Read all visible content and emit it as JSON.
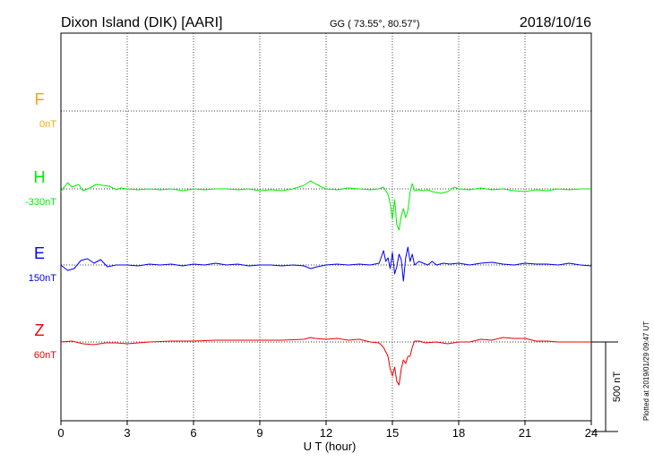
{
  "header": {
    "station": "Dixon Island (DIK)  [AARI]",
    "coords": "GG ( 73.55°,  80.57°)",
    "date": "2018/10/16"
  },
  "chart_data": {
    "type": "line",
    "title": "Dixon Island (DIK)  [AARI]",
    "xlabel": "U T (hour)",
    "xlim": [
      0,
      24
    ],
    "x_ticks": [
      "0",
      "3",
      "6",
      "9",
      "12",
      "15",
      "18",
      "21",
      "24"
    ],
    "grid": true,
    "scale_bar": {
      "value": 500,
      "label": "500 nT"
    },
    "footer": "Plotted at 2019/01/29 09:47 UT",
    "series": [
      {
        "name": "F",
        "offset_label": "0nT",
        "color": "#ffa500",
        "x": [],
        "y": []
      },
      {
        "name": "H",
        "offset_label": "-330nT",
        "color": "#00ee00",
        "x": [
          0,
          0.3,
          0.5,
          0.8,
          1.0,
          1.3,
          1.6,
          1.9,
          2.2,
          2.5,
          2.7,
          3.0,
          3.5,
          4.0,
          4.5,
          5.0,
          5.5,
          6.0,
          6.5,
          7.0,
          7.5,
          8.0,
          8.5,
          9.0,
          9.5,
          10.0,
          10.5,
          11.0,
          11.3,
          11.5,
          11.8,
          12.0,
          12.5,
          13.0,
          13.5,
          14.0,
          14.4,
          14.6,
          14.8,
          14.9,
          15.0,
          15.1,
          15.2,
          15.3,
          15.4,
          15.5,
          15.6,
          15.7,
          15.8,
          15.9,
          16.0,
          16.2,
          16.4,
          16.6,
          16.8,
          17.0,
          17.2,
          17.5,
          17.8,
          18.0,
          18.5,
          19.0,
          19.5,
          20.0,
          20.5,
          21.0,
          21.5,
          22.0,
          22.5,
          23.0,
          23.5,
          24.0
        ],
        "y": [
          -15,
          35,
          10,
          25,
          -10,
          5,
          25,
          20,
          15,
          -5,
          5,
          0,
          -5,
          0,
          -5,
          0,
          -10,
          0,
          -5,
          0,
          0,
          -5,
          0,
          -10,
          -5,
          -10,
          0,
          20,
          45,
          30,
          10,
          0,
          -5,
          5,
          0,
          -5,
          0,
          10,
          -30,
          -80,
          -170,
          -60,
          -200,
          -230,
          -150,
          -110,
          -160,
          -120,
          -20,
          30,
          -10,
          -5,
          -10,
          -5,
          -15,
          -20,
          -25,
          -15,
          10,
          0,
          -5,
          5,
          -5,
          0,
          -10,
          -15,
          -5,
          -10,
          0,
          -5,
          0,
          0
        ]
      },
      {
        "name": "E",
        "offset_label": "150nT",
        "color": "#0000ee",
        "x": [
          0,
          0.3,
          0.6,
          0.9,
          1.2,
          1.5,
          1.8,
          2.1,
          2.5,
          3.0,
          3.5,
          4.0,
          4.5,
          5.0,
          5.5,
          6.0,
          6.5,
          7.0,
          7.5,
          8.0,
          8.5,
          9.0,
          9.5,
          10.0,
          10.5,
          11.0,
          11.3,
          11.6,
          12.0,
          12.5,
          13.0,
          13.5,
          14.0,
          14.4,
          14.6,
          14.7,
          14.8,
          14.9,
          15.0,
          15.1,
          15.2,
          15.3,
          15.4,
          15.5,
          15.6,
          15.7,
          15.8,
          15.9,
          16.0,
          16.2,
          16.4,
          16.6,
          16.8,
          17.0,
          17.3,
          17.6,
          18.0,
          18.5,
          19.0,
          19.5,
          20.0,
          20.5,
          21.0,
          21.5,
          22.0,
          22.5,
          23.0,
          23.5,
          24.0
        ],
        "y": [
          0,
          -30,
          -20,
          25,
          35,
          10,
          30,
          -10,
          0,
          0,
          -5,
          5,
          0,
          5,
          -5,
          5,
          0,
          10,
          0,
          5,
          -5,
          0,
          0,
          -5,
          0,
          -5,
          -20,
          -10,
          0,
          5,
          0,
          5,
          0,
          10,
          80,
          20,
          40,
          -20,
          70,
          -50,
          -10,
          60,
          30,
          -90,
          40,
          100,
          20,
          60,
          0,
          20,
          10,
          0,
          20,
          0,
          10,
          5,
          10,
          0,
          10,
          15,
          5,
          0,
          10,
          5,
          5,
          0,
          10,
          0,
          -5
        ]
      },
      {
        "name": "Z",
        "offset_label": "60nT",
        "color": "#ee0000",
        "x": [
          0,
          0.5,
          1.0,
          1.5,
          2.0,
          2.5,
          3.0,
          3.5,
          4.0,
          5.0,
          6.0,
          7.0,
          8.0,
          9.0,
          10.0,
          11.0,
          11.3,
          11.5,
          12.0,
          12.5,
          13.0,
          13.5,
          14.0,
          14.4,
          14.6,
          14.8,
          14.9,
          15.0,
          15.1,
          15.2,
          15.3,
          15.4,
          15.5,
          15.6,
          15.7,
          15.8,
          15.9,
          16.0,
          16.2,
          16.5,
          17.0,
          17.5,
          18.0,
          18.5,
          19.0,
          19.5,
          20.0,
          20.5,
          21.0,
          21.5,
          22.0,
          22.5,
          23.0,
          23.5,
          24.0
        ],
        "y": [
          0,
          5,
          -10,
          -15,
          -5,
          -5,
          -10,
          -5,
          0,
          5,
          5,
          10,
          10,
          10,
          10,
          15,
          25,
          20,
          15,
          20,
          10,
          15,
          0,
          -5,
          -30,
          -80,
          -150,
          -190,
          -140,
          -220,
          -240,
          -150,
          -100,
          -120,
          -80,
          -80,
          -30,
          5,
          5,
          -5,
          0,
          -10,
          0,
          0,
          15,
          10,
          25,
          20,
          20,
          5,
          5,
          0,
          0,
          0,
          0
        ]
      }
    ]
  }
}
